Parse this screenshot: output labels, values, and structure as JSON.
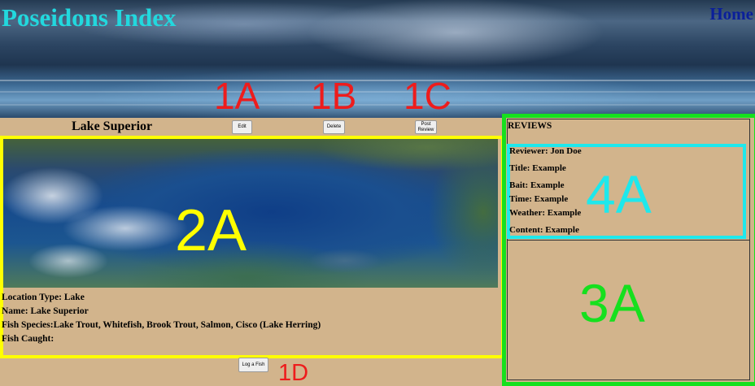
{
  "header": {
    "title": "Poseidons Index",
    "home_link": "Home"
  },
  "annotations": {
    "a1": "1A",
    "b1": "1B",
    "c1": "1C",
    "d1": "1D",
    "a2": "2A",
    "a3": "3A",
    "a4": "4A"
  },
  "toolbar": {
    "edit_label": "Edit",
    "delete_label": "Delete",
    "post_review_label": "Post Review",
    "log_fish_label": "Log a Fish"
  },
  "location": {
    "name_heading": "Lake Superior",
    "map_alt": "Satellite image of Lake Superior",
    "details": [
      {
        "label": "Location Type:",
        "value": "Lake"
      },
      {
        "label": "Name:",
        "value": "Lake Superior"
      },
      {
        "label": "Fish Species:",
        "value": "Lake Trout, Whitefish, Brook Trout, Salmon, Cisco (Lake Herring)"
      },
      {
        "label": "Fish Caught:",
        "value": ""
      }
    ]
  },
  "reviews": {
    "heading": "REVIEWS",
    "items": [
      {
        "reviewer": "Reviewer: Jon Doe",
        "title": "Title: Example",
        "bait": "Bait: Example",
        "time": "Time: Example",
        "weather": "Weather: Example",
        "content": "Content: Example"
      }
    ]
  },
  "colors": {
    "page_bg": "#d2b48c",
    "title": "#22d8de",
    "home_link": "#0a1f9a",
    "annotation_red": "#ee1c1c",
    "box_yellow": "#ffff00",
    "box_green": "#16e01e",
    "box_cyan": "#1ee8ec"
  }
}
